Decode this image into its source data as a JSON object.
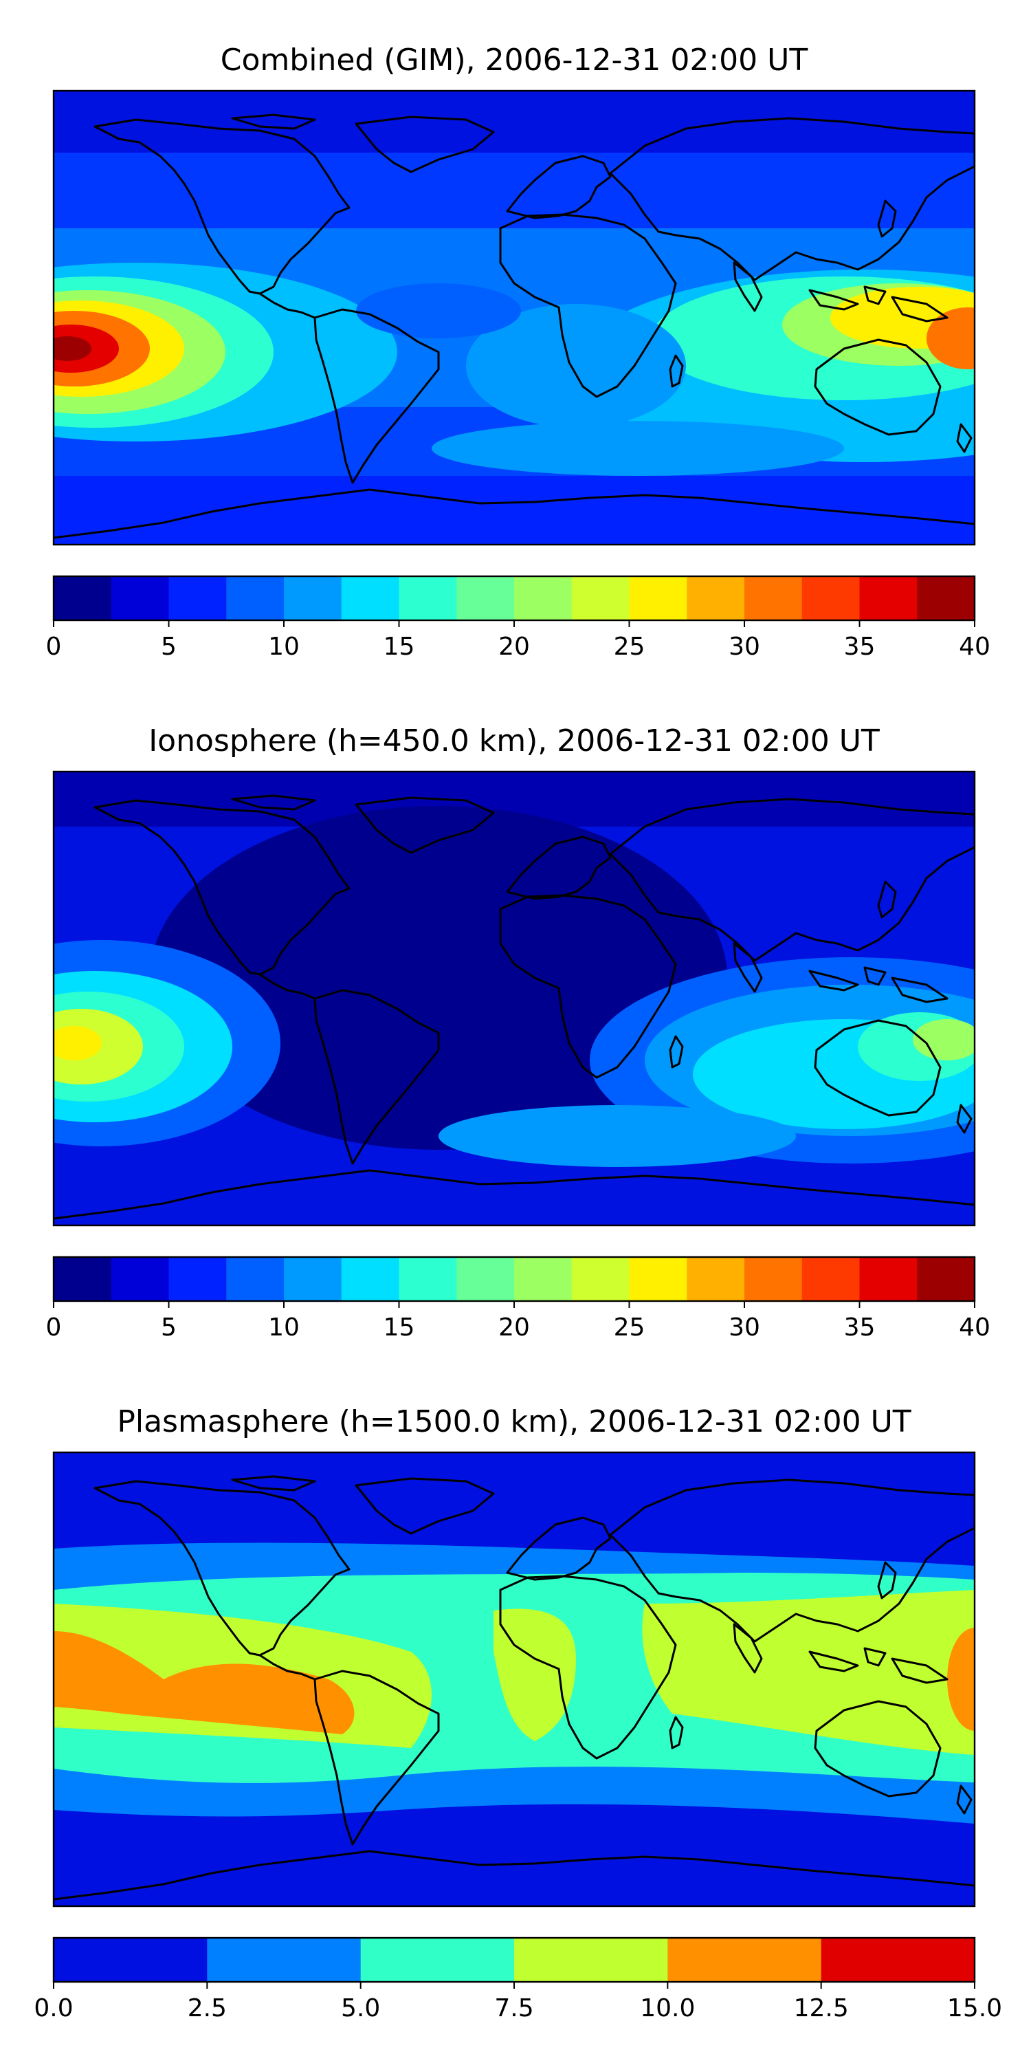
{
  "panels": [
    {
      "title": "Combined (GIM), 2006-12-31 02:00 UT",
      "colorbar": {
        "ticks": [
          "0",
          "5",
          "10",
          "15",
          "20",
          "25",
          "30",
          "35",
          "40"
        ],
        "colors": [
          "#00008f",
          "#0000d8",
          "#0022ff",
          "#0060ff",
          "#009aff",
          "#00dfff",
          "#2cffd0",
          "#66ff98",
          "#9cff62",
          "#cfff2e",
          "#fff000",
          "#ffb000",
          "#ff7300",
          "#ff3a00",
          "#e50000",
          "#9c0000"
        ]
      }
    },
    {
      "title": "Ionosphere  (h=450.0 km), 2006-12-31 02:00 UT",
      "colorbar": {
        "ticks": [
          "0",
          "5",
          "10",
          "15",
          "20",
          "25",
          "30",
          "35",
          "40"
        ],
        "colors": [
          "#00008f",
          "#0000d8",
          "#0022ff",
          "#0060ff",
          "#009aff",
          "#00dfff",
          "#2cffd0",
          "#66ff98",
          "#9cff62",
          "#cfff2e",
          "#fff000",
          "#ffb000",
          "#ff7300",
          "#ff3a00",
          "#e50000",
          "#9c0000"
        ]
      }
    },
    {
      "title": "Plasmasphere (h=1500.0 km), 2006-12-31 02:00 UT",
      "colorbar": {
        "ticks": [
          "0.0",
          "2.5",
          "5.0",
          "7.5",
          "10.0",
          "12.5",
          "15.0"
        ],
        "colors": [
          "#0010e0",
          "#0080ff",
          "#30ffc8",
          "#c0ff30",
          "#ff9000",
          "#e00000"
        ]
      }
    }
  ]
}
